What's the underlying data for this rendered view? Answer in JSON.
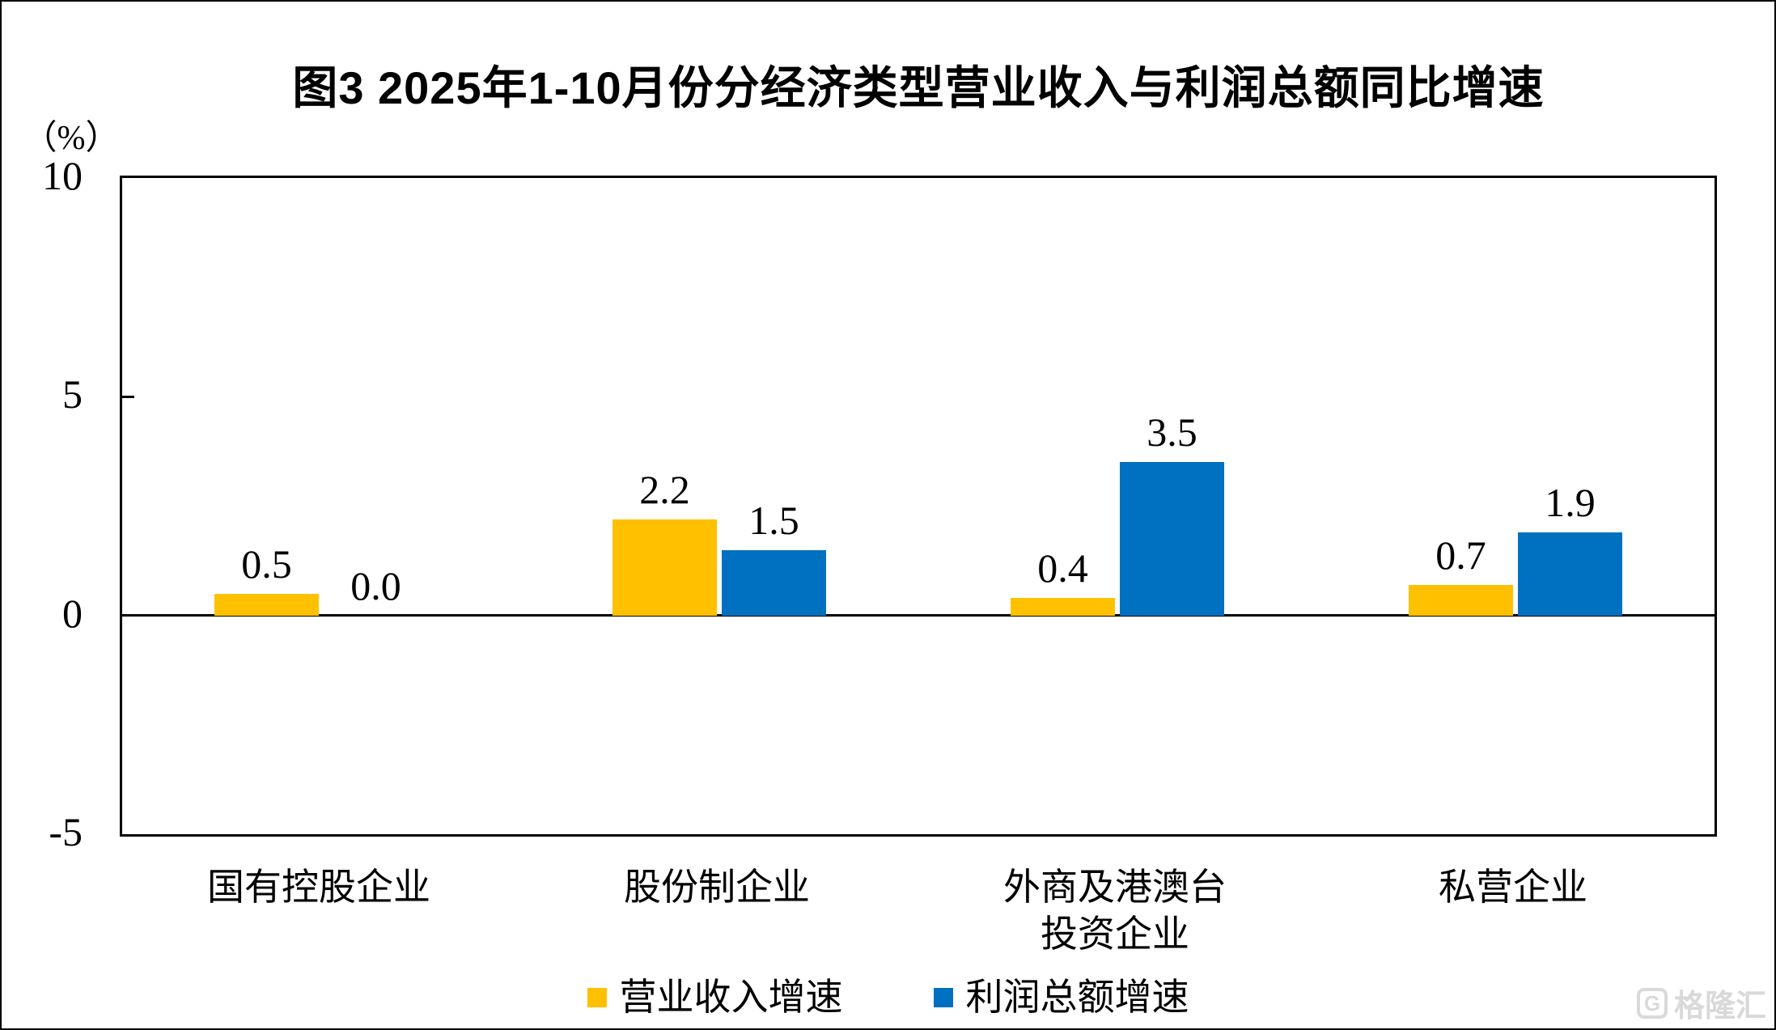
{
  "title": "图3  2025年1-10月份分经济类型营业收入与利润总额同比增速",
  "y_axis_unit": "（%）",
  "watermark_text": "格隆汇",
  "watermark_logo_letter": "G",
  "colors": {
    "revenue_bar": "#FFC000",
    "profit_bar": "#0070C0",
    "axis": "#000000",
    "watermark": "#D9D9D9"
  },
  "chart_data": {
    "type": "bar",
    "title": "图3  2025年1-10月份分经济类型营业收入与利润总额同比增速",
    "categories": [
      "国有控股企业",
      "股份制企业",
      "外商及港澳台\n投资企业",
      "私营企业"
    ],
    "series": [
      {
        "name": "营业收入增速",
        "color": "#FFC000",
        "values": [
          0.5,
          2.2,
          0.4,
          0.7
        ]
      },
      {
        "name": "利润总额增速",
        "color": "#0070C0",
        "values": [
          0.0,
          1.5,
          3.5,
          1.9
        ]
      }
    ],
    "data_labels": [
      [
        "0.5",
        "2.2",
        "0.4",
        "0.7"
      ],
      [
        "0.0",
        "1.5",
        "3.5",
        "1.9"
      ]
    ],
    "xlabel": "",
    "ylabel": "（%）",
    "ylim": [
      -5,
      10
    ],
    "yticks": [
      10,
      5,
      0,
      -5
    ],
    "grid": false,
    "legend_position": "bottom"
  }
}
